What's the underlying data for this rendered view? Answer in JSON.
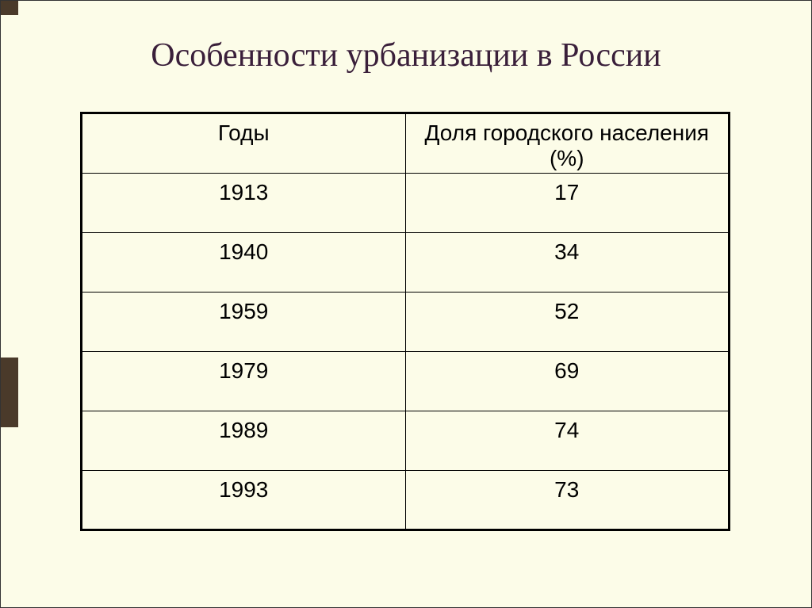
{
  "slide": {
    "title": "Особенности урбанизации в России",
    "background_color": "#fcfce8",
    "accent_color": "#4a3a2a",
    "title_color": "#3a1f3a",
    "title_fontsize": 42
  },
  "table": {
    "border_color": "#000000",
    "text_color": "#000000",
    "cell_fontsize": 28,
    "columns": [
      {
        "label": "Годы",
        "width": "50%"
      },
      {
        "label": "Доля городского населения (%)",
        "width": "50%"
      }
    ],
    "rows": [
      {
        "year": "1913",
        "percent": "17"
      },
      {
        "year": "1940",
        "percent": "34"
      },
      {
        "year": "1959",
        "percent": "52"
      },
      {
        "year": "1979",
        "percent": "69"
      },
      {
        "year": "1989",
        "percent": "74"
      },
      {
        "year": "1993",
        "percent": "73"
      }
    ]
  }
}
